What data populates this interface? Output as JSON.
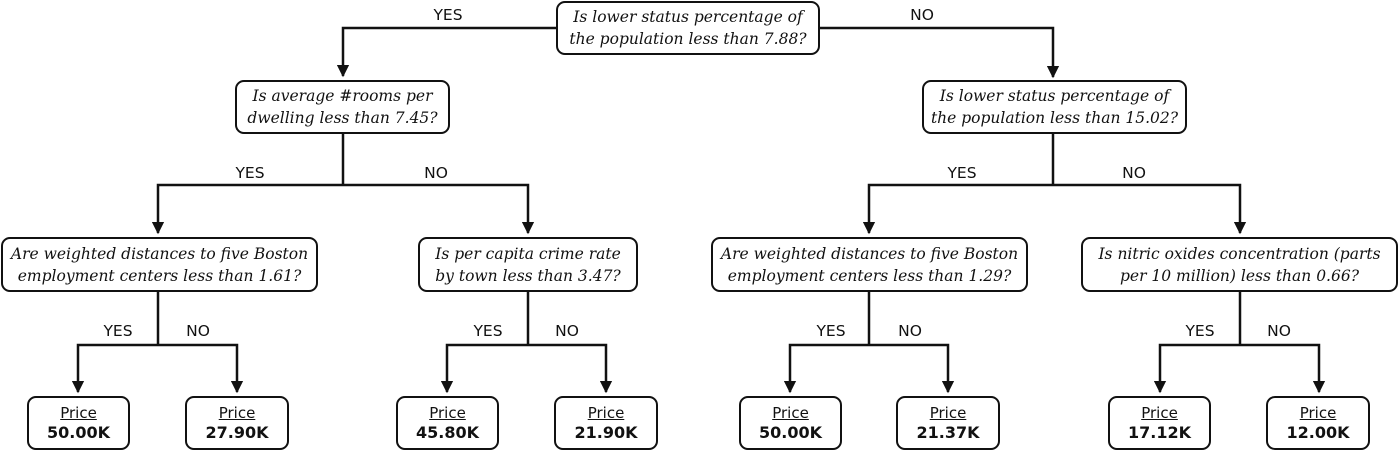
{
  "tree": {
    "root": {
      "line1": "Is lower status percentage of",
      "line2": "the population less than 7.88?"
    },
    "n_left": {
      "line1": "Is average #rooms per",
      "line2": "dwelling less than 7.45?"
    },
    "n_right": {
      "line1": "Is lower status percentage of",
      "line2": "the population less than 15.02?"
    },
    "n_ll": {
      "line1": "Are weighted distances to five Boston",
      "line2": "employment centers less than 1.61?"
    },
    "n_lr": {
      "line1": "Is per capita crime rate",
      "line2": "by town less than 3.47?"
    },
    "n_rl": {
      "line1": "Are weighted distances to five Boston",
      "line2": "employment centers less than 1.29?"
    },
    "n_rr": {
      "line1": "Is nitric oxides concentration (parts",
      "line2": "per 10 million) less than 0.66?"
    },
    "leaf1": {
      "label": "Price",
      "value": "50.00K"
    },
    "leaf2": {
      "label": "Price",
      "value": "27.90K"
    },
    "leaf3": {
      "label": "Price",
      "value": "45.80K"
    },
    "leaf4": {
      "label": "Price",
      "value": "21.90K"
    },
    "leaf5": {
      "label": "Price",
      "value": "50.00K"
    },
    "leaf6": {
      "label": "Price",
      "value": "21.37K"
    },
    "leaf7": {
      "label": "Price",
      "value": "17.12K"
    },
    "leaf8": {
      "label": "Price",
      "value": "12.00K"
    }
  },
  "branch_labels": {
    "yes": "YES",
    "no": "NO"
  },
  "colors": {
    "stroke": "#111111",
    "background": "#ffffff"
  }
}
